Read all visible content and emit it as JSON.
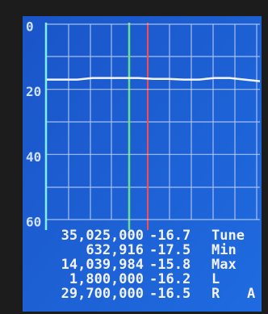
{
  "chart_data": {
    "type": "line",
    "color": "#f4f4f4",
    "values": [
      17,
      17,
      17,
      16.5,
      16.5,
      16.5,
      16.5,
      16.8,
      16.8,
      17,
      17,
      16.5,
      16.5,
      17,
      17.5
    ],
    "ylim": [
      0,
      60
    ],
    "yticks": [
      0,
      20,
      40,
      60
    ],
    "grid": true
  },
  "readout": {
    "rows": [
      [
        "35,025,000",
        "-16.7",
        "Tune"
      ],
      [
        "632,916",
        "-17.5",
        "Min"
      ],
      [
        "14,039,984",
        "-15.8",
        "Max"
      ],
      [
        "1,800,000",
        "-16.2",
        "L"
      ],
      [
        "29,700,000",
        "-16.5",
        "R",
        "A"
      ]
    ]
  }
}
